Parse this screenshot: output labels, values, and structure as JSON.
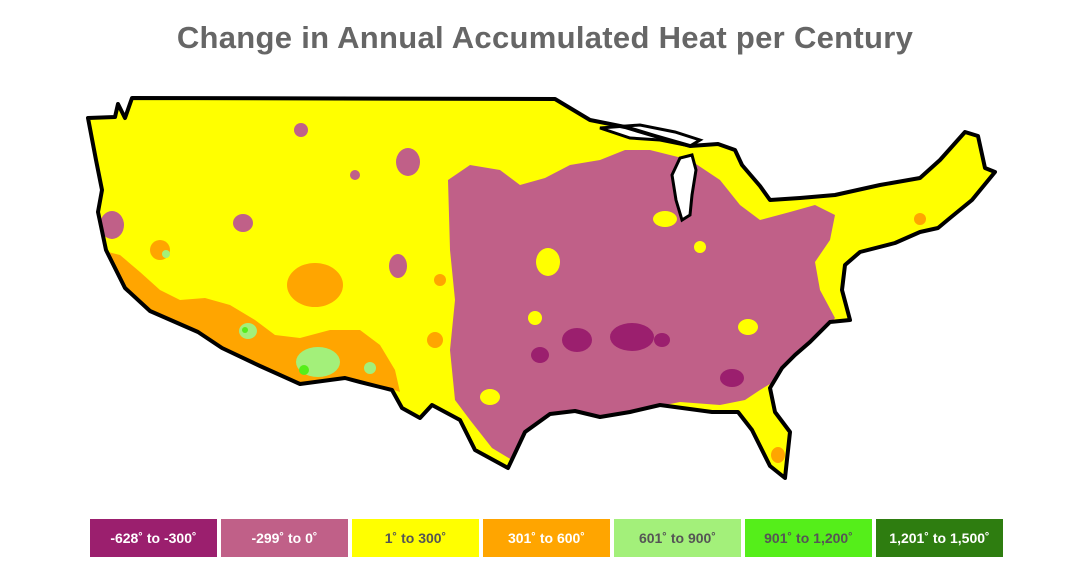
{
  "title": "Change in Annual Accumulated Heat per Century",
  "colors": {
    "purple_dark": "#9b1f6e",
    "purple": "#c06088",
    "yellow": "#ffff00",
    "orange": "#ffa500",
    "light_green": "#a3f07a",
    "green": "#55ee1a",
    "dark_green": "#2e7d10",
    "outline": "#000000"
  },
  "legend": [
    {
      "label": "-628˚ to -300˚",
      "color": "#9b1f6e",
      "text_color": "#ffffff"
    },
    {
      "label": "-299˚ to 0˚",
      "color": "#c06088",
      "text_color": "#ffffff"
    },
    {
      "label": "1˚ to 300˚",
      "color": "#ffff00",
      "text_color": "#555555"
    },
    {
      "label": "301˚ to 600˚",
      "color": "#ffa500",
      "text_color": "#ffffff"
    },
    {
      "label": "601˚ to 900˚",
      "color": "#a3f07a",
      "text_color": "#555555"
    },
    {
      "label": "901˚ to 1,200˚",
      "color": "#55ee1a",
      "text_color": "#555555"
    },
    {
      "label": "1,201˚ to 1,500˚",
      "color": "#2e7d10",
      "text_color": "#ffffff"
    }
  ]
}
